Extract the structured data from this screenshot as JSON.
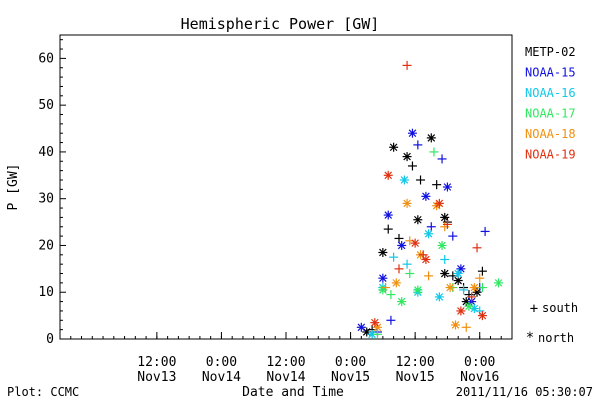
{
  "chart_data": {
    "type": "scatter",
    "title": "Hemispheric Power [GW]",
    "xlabel": "Date and Time",
    "ylabel": "P [GW]",
    "ylim": [
      0,
      65
    ],
    "yticks": [
      0,
      10,
      20,
      30,
      40,
      50,
      60
    ],
    "xlim": [
      "2011-11-12T18:00",
      "2011-11-16T06:00"
    ],
    "xticks": [
      {
        "at": "2011-11-13T12:00",
        "line1": "12:00",
        "line2": "Nov13"
      },
      {
        "at": "2011-11-14T00:00",
        "line1": "0:00",
        "line2": "Nov14"
      },
      {
        "at": "2011-11-14T12:00",
        "line1": "12:00",
        "line2": "Nov14"
      },
      {
        "at": "2011-11-15T00:00",
        "line1": "0:00",
        "line2": "Nov15"
      },
      {
        "at": "2011-11-15T12:00",
        "line1": "12:00",
        "line2": "Nov15"
      },
      {
        "at": "2011-11-16T00:00",
        "line1": "0:00",
        "line2": "Nov16"
      }
    ],
    "grid": false,
    "legend": "right",
    "marker_legend": [
      {
        "symbol": "+",
        "label": "south"
      },
      {
        "symbol": "*",
        "label": "north"
      }
    ],
    "series": [
      {
        "name": "METP-02",
        "color": "#000000",
        "points": [
          {
            "x": "2011-11-15T06:00",
            "y": 18.5,
            "m": "*"
          },
          {
            "x": "2011-11-15T07:00",
            "y": 23.5,
            "m": "+"
          },
          {
            "x": "2011-11-15T08:00",
            "y": 41,
            "m": "*"
          },
          {
            "x": "2011-11-15T09:00",
            "y": 21.5,
            "m": "+"
          },
          {
            "x": "2011-11-15T10:30",
            "y": 39,
            "m": "*"
          },
          {
            "x": "2011-11-15T11:30",
            "y": 37,
            "m": "+"
          },
          {
            "x": "2011-11-15T12:30",
            "y": 25.5,
            "m": "*"
          },
          {
            "x": "2011-11-15T13:00",
            "y": 34,
            "m": "+"
          },
          {
            "x": "2011-11-15T15:00",
            "y": 43,
            "m": "*"
          },
          {
            "x": "2011-11-15T16:00",
            "y": 33,
            "m": "+"
          },
          {
            "x": "2011-11-15T17:30",
            "y": 26,
            "m": "*"
          },
          {
            "x": "2011-11-15T17:30",
            "y": 14,
            "m": "*"
          },
          {
            "x": "2011-11-15T18:00",
            "y": 25,
            "m": "+"
          },
          {
            "x": "2011-11-15T19:00",
            "y": 13.5,
            "m": "+"
          },
          {
            "x": "2011-11-15T20:00",
            "y": 12.5,
            "m": "*"
          },
          {
            "x": "2011-11-15T21:00",
            "y": 11,
            "m": "+"
          },
          {
            "x": "2011-11-15T21:30",
            "y": 8,
            "m": "*"
          },
          {
            "x": "2011-11-15T22:00",
            "y": 9.5,
            "m": "+"
          },
          {
            "x": "2011-11-15T23:30",
            "y": 10,
            "m": "*"
          },
          {
            "x": "2011-11-16T00:30",
            "y": 14.5,
            "m": "+"
          },
          {
            "x": "2011-11-15T03:00",
            "y": 1.5,
            "m": "*"
          },
          {
            "x": "2011-11-15T04:00",
            "y": 2,
            "m": "+"
          }
        ]
      },
      {
        "name": "NOAA-15",
        "color": "#1010e0",
        "points": [
          {
            "x": "2011-11-15T02:00",
            "y": 2.5,
            "m": "*"
          },
          {
            "x": "2011-11-15T05:00",
            "y": 1.5,
            "m": "+"
          },
          {
            "x": "2011-11-15T06:00",
            "y": 13,
            "m": "*"
          },
          {
            "x": "2011-11-15T07:00",
            "y": 26.5,
            "m": "*"
          },
          {
            "x": "2011-11-15T07:30",
            "y": 4,
            "m": "+"
          },
          {
            "x": "2011-11-15T09:30",
            "y": 20,
            "m": "*"
          },
          {
            "x": "2011-11-15T11:30",
            "y": 44,
            "m": "*"
          },
          {
            "x": "2011-11-15T12:30",
            "y": 41.5,
            "m": "+"
          },
          {
            "x": "2011-11-15T14:00",
            "y": 30.5,
            "m": "*"
          },
          {
            "x": "2011-11-15T15:00",
            "y": 24,
            "m": "+"
          },
          {
            "x": "2011-11-15T17:00",
            "y": 38.5,
            "m": "+"
          },
          {
            "x": "2011-11-15T18:00",
            "y": 32.5,
            "m": "*"
          },
          {
            "x": "2011-11-15T19:00",
            "y": 22,
            "m": "+"
          },
          {
            "x": "2011-11-15T20:30",
            "y": 15,
            "m": "*"
          },
          {
            "x": "2011-11-15T22:30",
            "y": 8,
            "m": "*"
          },
          {
            "x": "2011-11-16T00:00",
            "y": 11,
            "m": "+"
          },
          {
            "x": "2011-11-16T01:00",
            "y": 23,
            "m": "+"
          }
        ]
      },
      {
        "name": "NOAA-16",
        "color": "#10c8e8",
        "points": [
          {
            "x": "2011-11-15T04:00",
            "y": 1,
            "m": "*"
          },
          {
            "x": "2011-11-15T06:00",
            "y": 11,
            "m": "*"
          },
          {
            "x": "2011-11-15T08:00",
            "y": 17.5,
            "m": "+"
          },
          {
            "x": "2011-11-15T10:00",
            "y": 34,
            "m": "*"
          },
          {
            "x": "2011-11-15T10:30",
            "y": 16,
            "m": "+"
          },
          {
            "x": "2011-11-15T12:30",
            "y": 10,
            "m": "*"
          },
          {
            "x": "2011-11-15T14:30",
            "y": 22.5,
            "m": "*"
          },
          {
            "x": "2011-11-15T16:30",
            "y": 9,
            "m": "*"
          },
          {
            "x": "2011-11-15T17:30",
            "y": 17,
            "m": "+"
          },
          {
            "x": "2011-11-15T20:00",
            "y": 14,
            "m": "*"
          },
          {
            "x": "2011-11-15T21:00",
            "y": 10.5,
            "m": "+"
          },
          {
            "x": "2011-11-15T23:00",
            "y": 6.5,
            "m": "*"
          },
          {
            "x": "2011-11-16T00:00",
            "y": 6,
            "m": "+"
          }
        ]
      },
      {
        "name": "NOAA-17",
        "color": "#30e860",
        "points": [
          {
            "x": "2011-11-15T05:00",
            "y": 1,
            "m": "+"
          },
          {
            "x": "2011-11-15T06:00",
            "y": 10.5,
            "m": "*"
          },
          {
            "x": "2011-11-15T07:30",
            "y": 9.5,
            "m": "+"
          },
          {
            "x": "2011-11-15T09:30",
            "y": 8,
            "m": "*"
          },
          {
            "x": "2011-11-15T11:00",
            "y": 14,
            "m": "+"
          },
          {
            "x": "2011-11-15T12:30",
            "y": 10.5,
            "m": "*"
          },
          {
            "x": "2011-11-15T15:30",
            "y": 40,
            "m": "+"
          },
          {
            "x": "2011-11-15T17:00",
            "y": 20,
            "m": "*"
          },
          {
            "x": "2011-11-15T19:00",
            "y": 11,
            "m": "+"
          },
          {
            "x": "2011-11-15T22:00",
            "y": 7,
            "m": "*"
          },
          {
            "x": "2011-11-16T00:30",
            "y": 11,
            "m": "+"
          },
          {
            "x": "2011-11-16T03:30",
            "y": 12,
            "m": "*"
          }
        ]
      },
      {
        "name": "NOAA-18",
        "color": "#f09010",
        "points": [
          {
            "x": "2011-11-15T05:00",
            "y": 2.5,
            "m": "*"
          },
          {
            "x": "2011-11-15T06:30",
            "y": 11,
            "m": "+"
          },
          {
            "x": "2011-11-15T08:30",
            "y": 12,
            "m": "*"
          },
          {
            "x": "2011-11-15T10:30",
            "y": 29,
            "m": "*"
          },
          {
            "x": "2011-11-15T11:00",
            "y": 21,
            "m": "+"
          },
          {
            "x": "2011-11-15T13:00",
            "y": 18,
            "m": "*"
          },
          {
            "x": "2011-11-15T14:30",
            "y": 13.5,
            "m": "+"
          },
          {
            "x": "2011-11-15T16:00",
            "y": 28.5,
            "m": "*"
          },
          {
            "x": "2011-11-15T17:30",
            "y": 24,
            "m": "+"
          },
          {
            "x": "2011-11-15T18:30",
            "y": 11,
            "m": "*"
          },
          {
            "x": "2011-11-15T19:30",
            "y": 3,
            "m": "*"
          },
          {
            "x": "2011-11-15T21:30",
            "y": 2.5,
            "m": "+"
          },
          {
            "x": "2011-11-15T23:00",
            "y": 11,
            "m": "*"
          },
          {
            "x": "2011-11-16T00:00",
            "y": 13,
            "m": "+"
          }
        ]
      },
      {
        "name": "NOAA-19",
        "color": "#e03010",
        "points": [
          {
            "x": "2011-11-15T04:30",
            "y": 3.5,
            "m": "*"
          },
          {
            "x": "2011-11-15T07:00",
            "y": 35,
            "m": "*"
          },
          {
            "x": "2011-11-15T09:00",
            "y": 15,
            "m": "+"
          },
          {
            "x": "2011-11-15T10:30",
            "y": 58.5,
            "m": "+"
          },
          {
            "x": "2011-11-15T12:00",
            "y": 20.5,
            "m": "*"
          },
          {
            "x": "2011-11-15T13:30",
            "y": 18,
            "m": "+"
          },
          {
            "x": "2011-11-15T14:00",
            "y": 17,
            "m": "*"
          },
          {
            "x": "2011-11-15T16:30",
            "y": 29,
            "m": "*"
          },
          {
            "x": "2011-11-15T18:00",
            "y": 24.5,
            "m": "+"
          },
          {
            "x": "2011-11-15T20:30",
            "y": 6,
            "m": "*"
          },
          {
            "x": "2011-11-15T22:30",
            "y": 9,
            "m": "+"
          },
          {
            "x": "2011-11-15T23:30",
            "y": 19.5,
            "m": "+"
          },
          {
            "x": "2011-11-16T00:30",
            "y": 5,
            "m": "*"
          }
        ]
      }
    ]
  },
  "footer": {
    "plot_credit": "Plot: CCMC",
    "timestamp": "2011/11/16 05:30:07"
  }
}
